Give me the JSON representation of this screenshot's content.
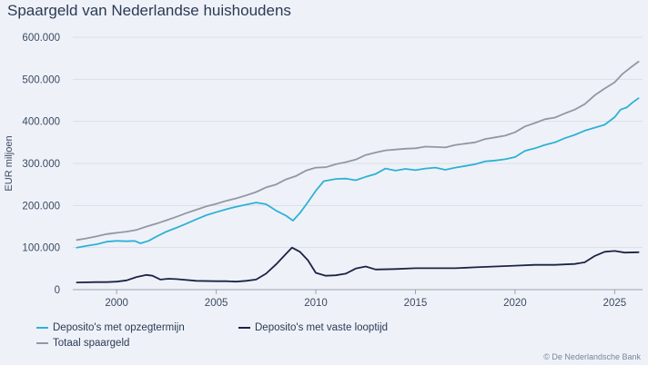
{
  "chart_data": {
    "type": "line",
    "title": "Spaargeld van Nederlandse huishoudens",
    "ylabel": "EUR miljoen",
    "xlabel": "",
    "xlim": [
      1997.8,
      2026.4
    ],
    "ylim": [
      0,
      600000
    ],
    "x_ticks": [
      2000,
      2005,
      2010,
      2015,
      2020,
      2025
    ],
    "x_tick_labels": [
      "2000",
      "2005",
      "2010",
      "2015",
      "2020",
      "2025"
    ],
    "y_ticks": [
      0,
      100000,
      200000,
      300000,
      400000,
      500000,
      600000
    ],
    "y_tick_labels": [
      "0",
      "100.000",
      "200.000",
      "300.000",
      "400.000",
      "500.000",
      "600.000"
    ],
    "grid": true,
    "legend_position": "bottom",
    "series": [
      {
        "name": "Deposito's met opzegtermijn",
        "color": "#2eb1d6",
        "points": [
          [
            1998.0,
            100000
          ],
          [
            1998.5,
            104000
          ],
          [
            1999.0,
            108000
          ],
          [
            1999.5,
            114000
          ],
          [
            2000.0,
            116000
          ],
          [
            2000.5,
            115000
          ],
          [
            2000.9,
            116000
          ],
          [
            2001.2,
            110000
          ],
          [
            2001.6,
            116000
          ],
          [
            2002.0,
            126000
          ],
          [
            2002.5,
            138000
          ],
          [
            2003.0,
            147000
          ],
          [
            2003.5,
            157000
          ],
          [
            2004.0,
            167000
          ],
          [
            2004.5,
            177000
          ],
          [
            2005.0,
            184000
          ],
          [
            2005.5,
            191000
          ],
          [
            2006.0,
            197000
          ],
          [
            2006.5,
            202000
          ],
          [
            2007.0,
            207000
          ],
          [
            2007.5,
            203000
          ],
          [
            2008.0,
            188000
          ],
          [
            2008.5,
            176000
          ],
          [
            2008.85,
            164000
          ],
          [
            2009.2,
            182000
          ],
          [
            2009.6,
            208000
          ],
          [
            2010.0,
            235000
          ],
          [
            2010.4,
            258000
          ],
          [
            2011.0,
            263000
          ],
          [
            2011.5,
            264000
          ],
          [
            2012.0,
            260000
          ],
          [
            2012.5,
            268000
          ],
          [
            2013.0,
            275000
          ],
          [
            2013.5,
            288000
          ],
          [
            2014.0,
            283000
          ],
          [
            2014.5,
            287000
          ],
          [
            2015.0,
            284000
          ],
          [
            2015.5,
            288000
          ],
          [
            2016.0,
            290000
          ],
          [
            2016.5,
            285000
          ],
          [
            2017.0,
            290000
          ],
          [
            2017.5,
            294000
          ],
          [
            2018.0,
            298000
          ],
          [
            2018.5,
            305000
          ],
          [
            2019.0,
            307000
          ],
          [
            2019.5,
            310000
          ],
          [
            2020.0,
            315000
          ],
          [
            2020.5,
            330000
          ],
          [
            2021.0,
            336000
          ],
          [
            2021.5,
            344000
          ],
          [
            2022.0,
            350000
          ],
          [
            2022.5,
            360000
          ],
          [
            2023.0,
            368000
          ],
          [
            2023.5,
            378000
          ],
          [
            2024.0,
            385000
          ],
          [
            2024.5,
            392000
          ],
          [
            2025.0,
            410000
          ],
          [
            2025.3,
            428000
          ],
          [
            2025.6,
            433000
          ],
          [
            2025.9,
            445000
          ],
          [
            2026.2,
            455000
          ]
        ]
      },
      {
        "name": "Deposito's met vaste looptijd",
        "color": "#1c2346",
        "points": [
          [
            1998.0,
            17000
          ],
          [
            1999.0,
            18000
          ],
          [
            1999.5,
            18000
          ],
          [
            2000.0,
            19000
          ],
          [
            2000.5,
            22000
          ],
          [
            2001.0,
            30000
          ],
          [
            2001.5,
            35000
          ],
          [
            2001.8,
            33000
          ],
          [
            2002.2,
            24000
          ],
          [
            2002.6,
            26000
          ],
          [
            2003.0,
            25000
          ],
          [
            2004.0,
            21000
          ],
          [
            2005.0,
            20000
          ],
          [
            2005.5,
            20000
          ],
          [
            2006.0,
            19000
          ],
          [
            2006.5,
            21000
          ],
          [
            2007.0,
            24000
          ],
          [
            2007.5,
            38000
          ],
          [
            2008.0,
            60000
          ],
          [
            2008.5,
            85000
          ],
          [
            2008.8,
            100000
          ],
          [
            2009.2,
            90000
          ],
          [
            2009.6,
            70000
          ],
          [
            2010.0,
            40000
          ],
          [
            2010.5,
            33000
          ],
          [
            2011.0,
            34000
          ],
          [
            2011.5,
            38000
          ],
          [
            2012.0,
            50000
          ],
          [
            2012.5,
            55000
          ],
          [
            2013.0,
            48000
          ],
          [
            2014.0,
            49000
          ],
          [
            2015.0,
            51000
          ],
          [
            2016.0,
            51000
          ],
          [
            2017.0,
            51000
          ],
          [
            2018.0,
            53000
          ],
          [
            2019.0,
            55000
          ],
          [
            2020.0,
            57000
          ],
          [
            2021.0,
            59000
          ],
          [
            2022.0,
            59000
          ],
          [
            2023.0,
            61000
          ],
          [
            2023.5,
            65000
          ],
          [
            2024.0,
            80000
          ],
          [
            2024.5,
            90000
          ],
          [
            2025.0,
            92000
          ],
          [
            2025.5,
            88000
          ],
          [
            2026.2,
            89000
          ]
        ]
      },
      {
        "name": "Totaal spaargeld",
        "color": "#9297a3",
        "points": [
          [
            1998.0,
            118000
          ],
          [
            1998.5,
            122000
          ],
          [
            1999.0,
            127000
          ],
          [
            1999.5,
            132000
          ],
          [
            2000.0,
            135000
          ],
          [
            2000.5,
            138000
          ],
          [
            2001.0,
            142000
          ],
          [
            2001.5,
            150000
          ],
          [
            2002.0,
            157000
          ],
          [
            2002.5,
            165000
          ],
          [
            2003.0,
            173000
          ],
          [
            2003.5,
            182000
          ],
          [
            2004.0,
            190000
          ],
          [
            2004.5,
            198000
          ],
          [
            2005.0,
            204000
          ],
          [
            2005.5,
            211000
          ],
          [
            2006.0,
            217000
          ],
          [
            2006.5,
            224000
          ],
          [
            2007.0,
            232000
          ],
          [
            2007.5,
            243000
          ],
          [
            2008.0,
            250000
          ],
          [
            2008.5,
            262000
          ],
          [
            2009.0,
            270000
          ],
          [
            2009.5,
            283000
          ],
          [
            2010.0,
            290000
          ],
          [
            2010.5,
            291000
          ],
          [
            2011.0,
            298000
          ],
          [
            2011.5,
            303000
          ],
          [
            2012.0,
            309000
          ],
          [
            2012.5,
            320000
          ],
          [
            2013.0,
            326000
          ],
          [
            2013.5,
            331000
          ],
          [
            2014.0,
            333000
          ],
          [
            2014.5,
            335000
          ],
          [
            2015.0,
            336000
          ],
          [
            2015.5,
            340000
          ],
          [
            2016.0,
            339000
          ],
          [
            2016.5,
            338000
          ],
          [
            2017.0,
            344000
          ],
          [
            2017.5,
            347000
          ],
          [
            2018.0,
            350000
          ],
          [
            2018.5,
            358000
          ],
          [
            2019.0,
            362000
          ],
          [
            2019.5,
            366000
          ],
          [
            2020.0,
            374000
          ],
          [
            2020.5,
            388000
          ],
          [
            2021.0,
            396000
          ],
          [
            2021.5,
            405000
          ],
          [
            2022.0,
            409000
          ],
          [
            2022.5,
            419000
          ],
          [
            2023.0,
            428000
          ],
          [
            2023.5,
            441000
          ],
          [
            2024.0,
            462000
          ],
          [
            2024.5,
            478000
          ],
          [
            2025.0,
            493000
          ],
          [
            2025.4,
            513000
          ],
          [
            2025.8,
            528000
          ],
          [
            2026.2,
            542000
          ]
        ]
      }
    ]
  },
  "credit": "© De Nederlandsche Bank"
}
